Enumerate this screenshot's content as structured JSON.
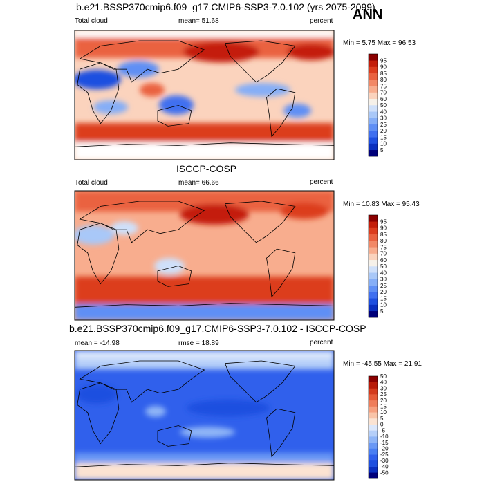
{
  "season": "ANN",
  "panels": [
    {
      "title": "b.e21.BSSP370cmip6.f09_g17.CMIP6-SSP3-7.0.102 (yrs 2075-2099)",
      "left_label": "Total cloud",
      "center_label": "mean=  51.68",
      "right_label": "percent",
      "minmax": "Min =   5.75 Max =  96.53"
    },
    {
      "title": "ISCCP-COSP",
      "left_label": "Total cloud",
      "center_label": "mean=  66.66",
      "right_label": "percent",
      "minmax": "Min =  10.83 Max =  95.43"
    },
    {
      "title": "b.e21.BSSP370cmip6.f09_g17.CMIP6-SSP3-7.0.102 - ISCCP-COSP",
      "left_label": "mean = -14.98",
      "center_label": "rmse =  18.89",
      "right_label": "percent",
      "minmax": "Min = -45.55 Max =  21.91"
    }
  ],
  "chart_data": [
    {
      "type": "heatmap",
      "title": "b.e21.BSSP370cmip6.f09_g17.CMIP6-SSP3-7.0.102 (yrs 2075-2099)",
      "variable": "Total cloud",
      "units": "percent",
      "mean": 51.68,
      "min": 5.75,
      "max": 96.53,
      "colorbar": {
        "levels": [
          5,
          10,
          15,
          20,
          25,
          30,
          40,
          50,
          60,
          70,
          75,
          80,
          85,
          90,
          95
        ],
        "colors": [
          "#00007a",
          "#0a2fbf",
          "#1e4fe0",
          "#3f6ff0",
          "#5f8ff5",
          "#85aef7",
          "#a9c8f8",
          "#cfe0fa",
          "#f6f1e9",
          "#fbd3bd",
          "#f8ad8e",
          "#f28866",
          "#ea6240",
          "#dc3d1e",
          "#c41e0a",
          "#8b0000"
        ]
      }
    },
    {
      "type": "heatmap",
      "title": "ISCCP-COSP",
      "variable": "Total cloud",
      "units": "percent",
      "mean": 66.66,
      "min": 10.83,
      "max": 95.43,
      "colorbar": {
        "levels": [
          5,
          10,
          15,
          20,
          25,
          30,
          40,
          50,
          60,
          70,
          75,
          80,
          85,
          90,
          95
        ],
        "colors": [
          "#00007a",
          "#0a2fbf",
          "#1e4fe0",
          "#3f6ff0",
          "#5f8ff5",
          "#85aef7",
          "#a9c8f8",
          "#cfe0fa",
          "#f6f1e9",
          "#fbd3bd",
          "#f8ad8e",
          "#f28866",
          "#ea6240",
          "#dc3d1e",
          "#c41e0a",
          "#8b0000"
        ]
      }
    },
    {
      "type": "heatmap",
      "title": "b.e21.BSSP370cmip6.f09_g17.CMIP6-SSP3-7.0.102 - ISCCP-COSP",
      "units": "percent",
      "mean": -14.98,
      "rmse": 18.89,
      "min": -45.55,
      "max": 21.91,
      "colorbar": {
        "levels": [
          -50,
          -40,
          -30,
          -25,
          -20,
          -15,
          -10,
          -5,
          0,
          5,
          10,
          15,
          20,
          25,
          30,
          40,
          50
        ],
        "colors": [
          "#00007a",
          "#0a2fbf",
          "#1e4fe0",
          "#3060ec",
          "#4a7ff3",
          "#6a98f5",
          "#8fb5f7",
          "#b5cff9",
          "#dbe7fb",
          "#fbe3d2",
          "#f9c4a8",
          "#f6a07f",
          "#ef7d5a",
          "#e65a37",
          "#d43a1c",
          "#b81a08",
          "#8b0000"
        ]
      }
    }
  ]
}
